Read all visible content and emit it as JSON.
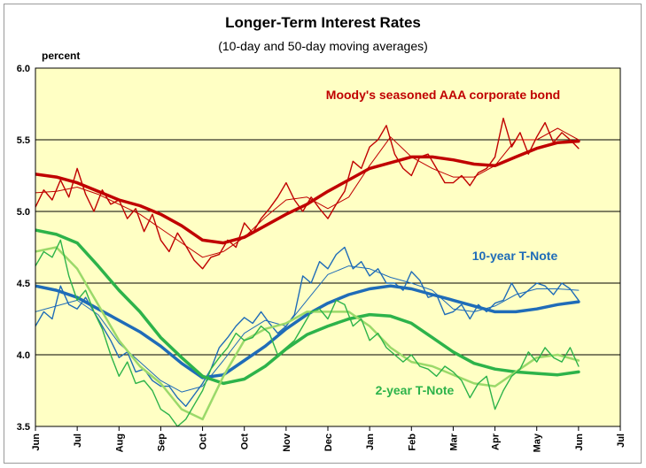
{
  "chart_data": {
    "type": "line",
    "title": "Longer-Term Interest Rates",
    "subtitle": "(10-day and 50-day moving averages)",
    "ylabel": "percent",
    "ylim": [
      3.5,
      6.0
    ],
    "yticks": [
      "3.5",
      "4.0",
      "4.5",
      "5.0",
      "5.5",
      "6.0"
    ],
    "x_tick_labels": [
      "Jun",
      "Jul",
      "Aug",
      "Sep",
      "Oct",
      "Oct",
      "Nov",
      "Dec",
      "Jan",
      "Feb",
      "Mar",
      "Apr",
      "May",
      "Jun",
      "Jul"
    ],
    "grid": true,
    "background": "#ffffc4",
    "x_unit": "months from start (0 = Jun)",
    "series": [
      {
        "name": "Moody's seasoned AAA corporate bond",
        "label_color": "#c00000",
        "daily": {
          "x": [
            0,
            0.2,
            0.4,
            0.6,
            0.8,
            1.0,
            1.2,
            1.4,
            1.6,
            1.8,
            2.0,
            2.2,
            2.4,
            2.6,
            2.8,
            3.0,
            3.2,
            3.4,
            3.6,
            3.8,
            4.0,
            4.2,
            4.4,
            4.6,
            4.8,
            5.0,
            5.2,
            5.4,
            5.6,
            5.8,
            6.0,
            6.2,
            6.4,
            6.6,
            6.8,
            7.0,
            7.2,
            7.4,
            7.6,
            7.8,
            8.0,
            8.2,
            8.4,
            8.6,
            8.8,
            9.0,
            9.2,
            9.4,
            9.6,
            9.8,
            10.0,
            10.2,
            10.4,
            10.6,
            10.8,
            11.0,
            11.2,
            11.4,
            11.6,
            11.8,
            12.0,
            12.2,
            12.4,
            12.6,
            12.8,
            13.0
          ],
          "values": [
            5.03,
            5.15,
            5.08,
            5.22,
            5.1,
            5.3,
            5.12,
            5.0,
            5.15,
            5.05,
            5.08,
            4.95,
            5.02,
            4.86,
            4.98,
            4.8,
            4.72,
            4.85,
            4.76,
            4.66,
            4.6,
            4.68,
            4.7,
            4.8,
            4.75,
            4.92,
            4.85,
            4.95,
            5.02,
            5.1,
            5.2,
            5.08,
            5.0,
            5.1,
            5.02,
            4.95,
            5.05,
            5.14,
            5.35,
            5.3,
            5.45,
            5.5,
            5.6,
            5.4,
            5.3,
            5.25,
            5.38,
            5.4,
            5.3,
            5.2,
            5.2,
            5.25,
            5.18,
            5.27,
            5.3,
            5.38,
            5.65,
            5.45,
            5.55,
            5.4,
            5.52,
            5.62,
            5.48,
            5.55,
            5.5,
            5.44
          ],
          "color": "#c00000",
          "width": 1.4
        },
        "ma10": {
          "x": [
            0,
            0.5,
            1.0,
            1.5,
            2.0,
            2.5,
            3.0,
            3.5,
            4.0,
            4.5,
            5.0,
            5.5,
            6.0,
            6.5,
            7.0,
            7.5,
            8.0,
            8.5,
            9.0,
            9.5,
            10.0,
            10.5,
            11.0,
            11.5,
            12.0,
            12.5,
            13.0
          ],
          "values": [
            5.13,
            5.14,
            5.17,
            5.12,
            5.05,
            4.98,
            4.88,
            4.78,
            4.68,
            4.72,
            4.82,
            4.96,
            5.08,
            5.1,
            5.02,
            5.1,
            5.32,
            5.52,
            5.38,
            5.3,
            5.24,
            5.24,
            5.32,
            5.5,
            5.5,
            5.58,
            5.5
          ],
          "color": "#c00000",
          "width": 1
        },
        "ma50": {
          "x": [
            0,
            0.5,
            1.0,
            1.5,
            2.0,
            2.5,
            3.0,
            3.5,
            4.0,
            4.5,
            5.0,
            5.5,
            6.0,
            6.5,
            7.0,
            7.5,
            8.0,
            8.5,
            9.0,
            9.5,
            10.0,
            10.5,
            11.0,
            11.5,
            12.0,
            12.5,
            13.0
          ],
          "values": [
            5.26,
            5.24,
            5.2,
            5.14,
            5.08,
            5.04,
            4.98,
            4.9,
            4.8,
            4.78,
            4.82,
            4.9,
            4.98,
            5.05,
            5.14,
            5.22,
            5.3,
            5.34,
            5.38,
            5.38,
            5.36,
            5.33,
            5.32,
            5.38,
            5.44,
            5.48,
            5.49
          ],
          "color": "#c00000",
          "width": 3.5
        }
      },
      {
        "name": "10-year T-Note",
        "label_color": "#1f6cb8",
        "daily": {
          "x": [
            0,
            0.2,
            0.4,
            0.6,
            0.8,
            1.0,
            1.2,
            1.4,
            1.6,
            1.8,
            2.0,
            2.2,
            2.4,
            2.6,
            2.8,
            3.0,
            3.2,
            3.4,
            3.6,
            3.8,
            4.0,
            4.2,
            4.4,
            4.6,
            4.8,
            5.0,
            5.2,
            5.4,
            5.6,
            5.8,
            6.0,
            6.2,
            6.4,
            6.6,
            6.8,
            7.0,
            7.2,
            7.4,
            7.6,
            7.8,
            8.0,
            8.2,
            8.4,
            8.6,
            8.8,
            9.0,
            9.2,
            9.4,
            9.6,
            9.8,
            10.0,
            10.2,
            10.4,
            10.6,
            10.8,
            11.0,
            11.2,
            11.4,
            11.6,
            11.8,
            12.0,
            12.2,
            12.4,
            12.6,
            12.8,
            13.0
          ],
          "values": [
            4.2,
            4.3,
            4.25,
            4.48,
            4.35,
            4.32,
            4.4,
            4.3,
            4.2,
            4.1,
            3.98,
            4.02,
            3.88,
            3.9,
            3.82,
            3.78,
            3.78,
            3.7,
            3.64,
            3.72,
            3.8,
            3.9,
            4.05,
            4.12,
            4.2,
            4.26,
            4.22,
            4.3,
            4.22,
            4.15,
            4.2,
            4.28,
            4.55,
            4.5,
            4.65,
            4.6,
            4.7,
            4.75,
            4.6,
            4.65,
            4.55,
            4.6,
            4.5,
            4.5,
            4.45,
            4.58,
            4.52,
            4.4,
            4.42,
            4.28,
            4.3,
            4.35,
            4.25,
            4.35,
            4.3,
            4.36,
            4.38,
            4.5,
            4.4,
            4.45,
            4.5,
            4.48,
            4.42,
            4.5,
            4.46,
            4.38
          ],
          "color": "#1f6cb8",
          "width": 1.4
        },
        "ma10": {
          "x": [
            0,
            0.5,
            1.0,
            1.5,
            2.0,
            2.5,
            3.0,
            3.5,
            4.0,
            4.5,
            5.0,
            5.5,
            6.0,
            6.5,
            7.0,
            7.5,
            8.0,
            8.5,
            9.0,
            9.5,
            10.0,
            10.5,
            11.0,
            11.5,
            12.0,
            12.5,
            13.0
          ],
          "values": [
            4.3,
            4.34,
            4.38,
            4.28,
            4.08,
            3.95,
            3.82,
            3.74,
            3.78,
            3.96,
            4.15,
            4.24,
            4.2,
            4.38,
            4.56,
            4.62,
            4.6,
            4.54,
            4.5,
            4.45,
            4.32,
            4.3,
            4.34,
            4.42,
            4.46,
            4.46,
            4.45
          ],
          "color": "#1f6cb8",
          "width": 1
        },
        "ma50": {
          "x": [
            0,
            0.5,
            1.0,
            1.5,
            2.0,
            2.5,
            3.0,
            3.5,
            4.0,
            4.5,
            5.0,
            5.5,
            6.0,
            6.5,
            7.0,
            7.5,
            8.0,
            8.5,
            9.0,
            9.5,
            10.0,
            10.5,
            11.0,
            11.5,
            12.0,
            12.5,
            13.0
          ],
          "values": [
            4.48,
            4.45,
            4.4,
            4.32,
            4.24,
            4.16,
            4.06,
            3.94,
            3.84,
            3.86,
            3.96,
            4.06,
            4.18,
            4.28,
            4.36,
            4.42,
            4.46,
            4.48,
            4.46,
            4.42,
            4.38,
            4.34,
            4.3,
            4.3,
            4.32,
            4.35,
            4.37
          ],
          "color": "#1f6cb8",
          "width": 3.5
        }
      },
      {
        "name": "2-year T-Note",
        "label_color": "#2db34a",
        "daily": {
          "x": [
            0,
            0.2,
            0.4,
            0.6,
            0.8,
            1.0,
            1.2,
            1.4,
            1.6,
            1.8,
            2.0,
            2.2,
            2.4,
            2.6,
            2.8,
            3.0,
            3.2,
            3.4,
            3.6,
            3.8,
            4.0,
            4.2,
            4.4,
            4.6,
            4.8,
            5.0,
            5.2,
            5.4,
            5.6,
            5.8,
            6.0,
            6.2,
            6.4,
            6.6,
            6.8,
            7.0,
            7.2,
            7.4,
            7.6,
            7.8,
            8.0,
            8.2,
            8.4,
            8.6,
            8.8,
            9.0,
            9.2,
            9.4,
            9.6,
            9.8,
            10.0,
            10.2,
            10.4,
            10.6,
            10.8,
            11.0,
            11.2,
            11.4,
            11.6,
            11.8,
            12.0,
            12.2,
            12.4,
            12.6,
            12.8,
            13.0
          ],
          "values": [
            4.62,
            4.72,
            4.68,
            4.8,
            4.55,
            4.38,
            4.45,
            4.3,
            4.18,
            4.0,
            3.85,
            3.95,
            3.8,
            3.82,
            3.75,
            3.62,
            3.58,
            3.5,
            3.55,
            3.65,
            3.75,
            3.9,
            3.98,
            4.05,
            4.15,
            4.1,
            4.12,
            4.2,
            4.15,
            4.0,
            4.05,
            4.1,
            4.2,
            4.3,
            4.32,
            4.25,
            4.38,
            4.35,
            4.2,
            4.25,
            4.1,
            4.15,
            4.05,
            4.0,
            3.95,
            4.0,
            3.92,
            3.9,
            3.85,
            3.92,
            3.88,
            3.82,
            3.7,
            3.8,
            3.85,
            3.62,
            3.75,
            3.85,
            3.9,
            4.02,
            3.95,
            4.05,
            3.98,
            3.95,
            4.05,
            3.92
          ],
          "color": "#2db34a",
          "width": 1.4
        },
        "ma10": {
          "x": [
            0,
            0.5,
            1.0,
            1.5,
            2.0,
            2.5,
            3.0,
            3.5,
            4.0,
            4.5,
            5.0,
            5.5,
            6.0,
            6.5,
            7.0,
            7.5,
            8.0,
            8.5,
            9.0,
            9.5,
            10.0,
            10.5,
            11.0,
            11.5,
            12.0,
            12.5,
            13.0
          ],
          "values": [
            4.72,
            4.75,
            4.6,
            4.35,
            4.1,
            3.92,
            3.8,
            3.62,
            3.55,
            3.85,
            4.1,
            4.18,
            4.22,
            4.3,
            4.3,
            4.3,
            4.2,
            4.05,
            3.95,
            3.92,
            3.86,
            3.8,
            3.78,
            3.88,
            3.98,
            4.0,
            3.96
          ],
          "color": "#9bd96a",
          "width": 2.5
        },
        "ma50": {
          "x": [
            0,
            0.5,
            1.0,
            1.5,
            2.0,
            2.5,
            3.0,
            3.5,
            4.0,
            4.5,
            5.0,
            5.5,
            6.0,
            6.5,
            7.0,
            7.5,
            8.0,
            8.5,
            9.0,
            9.5,
            10.0,
            10.5,
            11.0,
            11.5,
            12.0,
            12.5,
            13.0
          ],
          "values": [
            4.87,
            4.84,
            4.78,
            4.62,
            4.45,
            4.3,
            4.12,
            3.98,
            3.85,
            3.8,
            3.83,
            3.92,
            4.04,
            4.14,
            4.2,
            4.25,
            4.28,
            4.27,
            4.22,
            4.12,
            4.02,
            3.94,
            3.9,
            3.88,
            3.87,
            3.86,
            3.88
          ],
          "color": "#2db34a",
          "width": 3.5
        }
      }
    ]
  }
}
